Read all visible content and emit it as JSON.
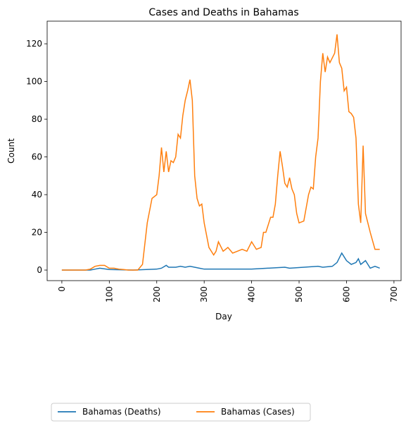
{
  "chart_data": {
    "type": "line",
    "title": "Cases and Deaths in Bahamas",
    "xlabel": "Day",
    "ylabel": "Count",
    "xlim": [
      -31,
      715
    ],
    "ylim": [
      -5.6,
      132
    ],
    "xticks": [
      0,
      100,
      200,
      300,
      400,
      500,
      600,
      700
    ],
    "yticks": [
      0,
      20,
      40,
      60,
      80,
      100,
      120
    ],
    "legend": "bottom",
    "series": [
      {
        "name": "Bahamas (Deaths)",
        "color": "#1f77b4",
        "x": [
          0,
          60,
          70,
          80,
          100,
          150,
          200,
          210,
          220,
          225,
          240,
          250,
          260,
          270,
          290,
          300,
          350,
          400,
          470,
          480,
          540,
          550,
          570,
          580,
          590,
          600,
          610,
          620,
          625,
          630,
          640,
          650,
          660,
          670
        ],
        "values": [
          0,
          0,
          0.5,
          1,
          0.3,
          0,
          0.5,
          1,
          2.5,
          1.5,
          1.5,
          2,
          1.5,
          2,
          1,
          0.5,
          0.5,
          0.5,
          1.5,
          1,
          2,
          1.5,
          2,
          4,
          9,
          5,
          3,
          4,
          6,
          3,
          5,
          1,
          2,
          1
        ]
      },
      {
        "name": "Bahamas (Cases)",
        "color": "#ff7f0e",
        "x": [
          0,
          50,
          60,
          70,
          80,
          90,
          100,
          110,
          120,
          130,
          140,
          150,
          160,
          170,
          180,
          190,
          200,
          205,
          210,
          215,
          220,
          225,
          230,
          235,
          240,
          245,
          250,
          255,
          260,
          265,
          270,
          275,
          280,
          285,
          290,
          295,
          300,
          310,
          320,
          325,
          330,
          340,
          350,
          360,
          370,
          380,
          390,
          400,
          410,
          420,
          425,
          430,
          440,
          445,
          450,
          455,
          460,
          465,
          470,
          475,
          480,
          485,
          490,
          495,
          500,
          510,
          520,
          525,
          530,
          535,
          540,
          545,
          550,
          555,
          560,
          565,
          575,
          580,
          585,
          590,
          595,
          600,
          605,
          610,
          615,
          620,
          625,
          630,
          635,
          640,
          650,
          660,
          665,
          670
        ],
        "values": [
          0,
          0,
          0.5,
          2,
          2.5,
          2.5,
          1,
          1,
          0.5,
          0.3,
          0,
          0,
          0,
          3,
          25,
          38,
          40,
          50,
          65,
          52,
          63,
          52,
          58,
          57,
          60,
          72,
          70,
          82,
          90,
          95,
          101,
          90,
          50,
          38,
          34,
          35,
          25,
          12,
          8,
          10,
          15,
          10,
          12,
          9,
          10,
          11,
          10,
          15,
          11,
          12,
          20,
          20,
          28,
          28,
          35,
          50,
          63,
          55,
          46,
          44,
          49,
          43,
          40,
          30,
          25,
          26,
          40,
          44,
          43,
          60,
          70,
          100,
          115,
          105,
          113,
          110,
          115,
          125,
          110,
          107,
          95,
          97,
          84,
          83,
          81,
          70,
          35,
          25,
          66,
          30,
          20,
          11,
          11,
          11
        ]
      }
    ]
  }
}
